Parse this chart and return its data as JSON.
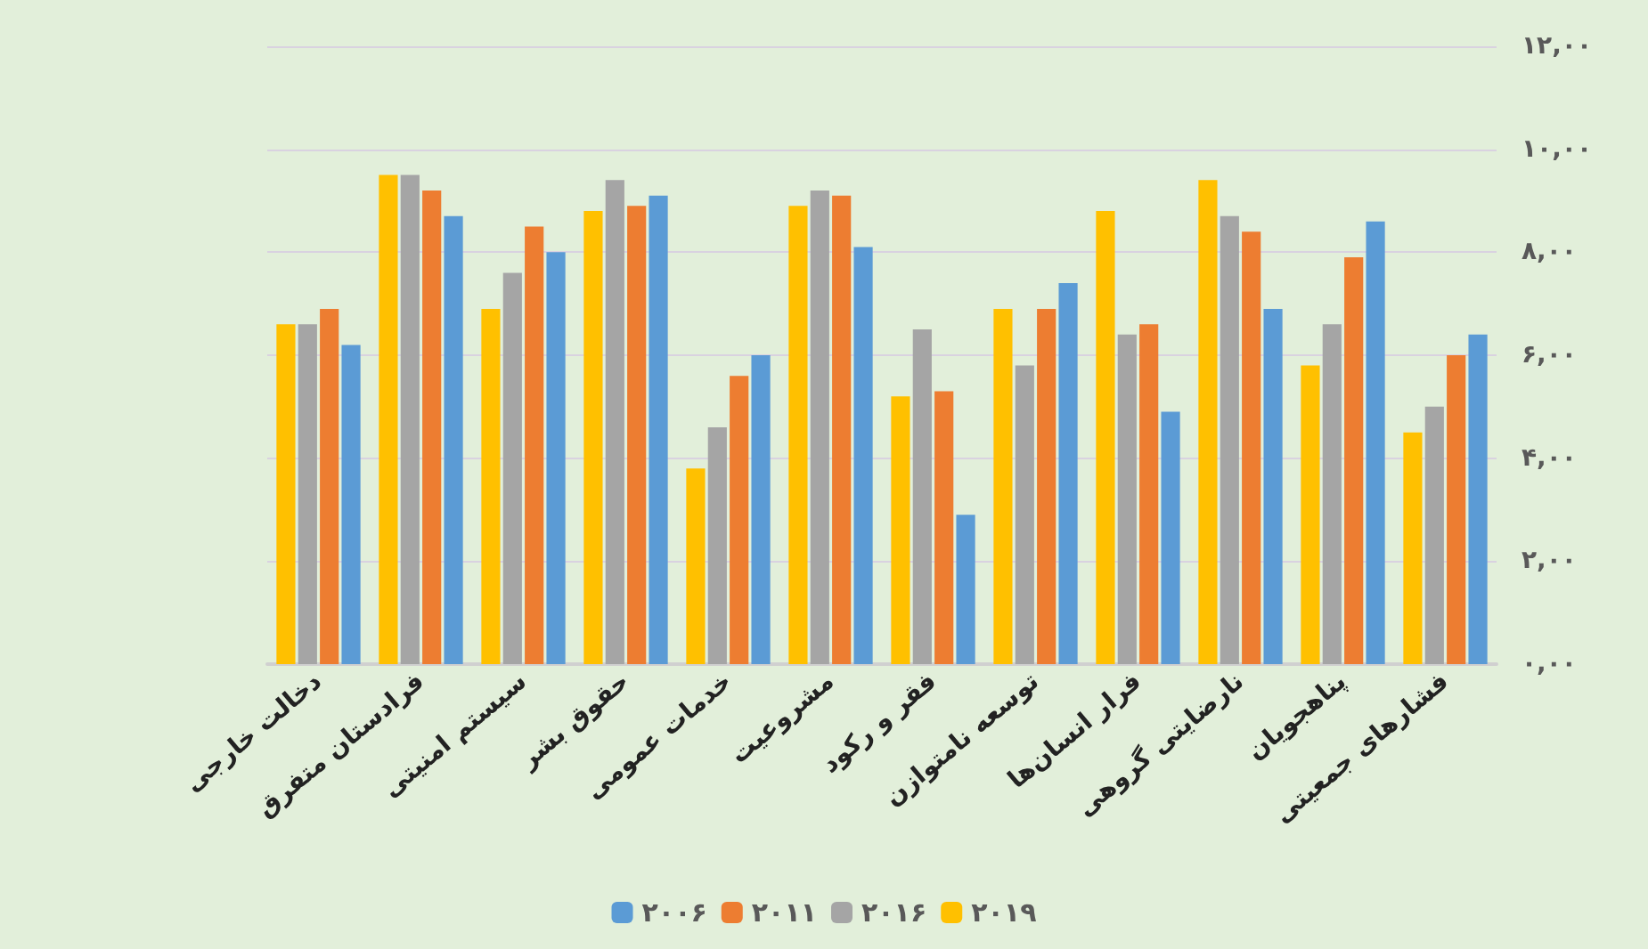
{
  "chart_data": {
    "type": "bar",
    "categories": [
      "دخالت خارجی",
      "فرادستان متفرق",
      "سیستم امنیتی",
      "حقوق بشر",
      "خدمات عمومی",
      "مشروعیت",
      "فقر و رکود",
      "توسعه نامتوازن",
      "فرار انسان‌ها",
      "نارضایتی گروهی",
      "پناهجویان",
      "فشارهای جمعیتی"
    ],
    "series": [
      {
        "name": "۲۰۰۶",
        "color": "#5b9bd5",
        "values": [
          6.2,
          8.7,
          8.0,
          9.1,
          6.0,
          8.1,
          2.9,
          7.4,
          4.9,
          6.9,
          8.6,
          6.4
        ]
      },
      {
        "name": "۲۰۱۱",
        "color": "#ed7d31",
        "values": [
          6.9,
          9.2,
          8.5,
          8.9,
          5.6,
          9.1,
          5.3,
          6.9,
          6.6,
          8.4,
          7.9,
          6.0
        ]
      },
      {
        "name": "۲۰۱۶",
        "color": "#a5a5a5",
        "values": [
          6.6,
          9.5,
          7.6,
          9.4,
          4.6,
          9.2,
          6.5,
          5.8,
          6.4,
          8.7,
          6.6,
          5.0
        ]
      },
      {
        "name": "۲۰۱۹",
        "color": "#ffc000",
        "values": [
          6.6,
          9.5,
          6.9,
          8.8,
          3.8,
          8.9,
          5.2,
          6.9,
          8.8,
          9.4,
          5.8,
          4.5
        ]
      }
    ],
    "ylim": [
      0,
      12
    ],
    "yticks": [
      {
        "value": 0,
        "label": "۰,۰۰"
      },
      {
        "value": 2,
        "label": "۲,۰۰"
      },
      {
        "value": 4,
        "label": "۴,۰۰"
      },
      {
        "value": 6,
        "label": "۶,۰۰"
      },
      {
        "value": 8,
        "label": "۸,۰۰"
      },
      {
        "value": 10,
        "label": "۱۰,۰۰"
      },
      {
        "value": 12,
        "label": "۱۲,۰۰"
      }
    ],
    "grid": "y",
    "legend": "bottom"
  }
}
